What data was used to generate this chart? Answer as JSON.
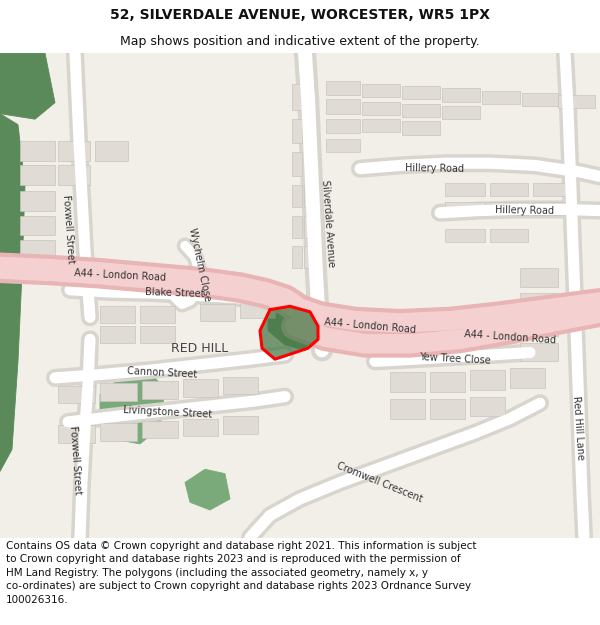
{
  "title_line1": "52, SILVERDALE AVENUE, WORCESTER, WR5 1PX",
  "title_line2": "Map shows position and indicative extent of the property.",
  "footer": "Contains OS data © Crown copyright and database right 2021. This information is subject\nto Crown copyright and database rights 2023 and is reproduced with the permission of\nHM Land Registry. The polygons (including the associated geometry, namely x, y\nco-ordinates) are subject to Crown copyright and database rights 2023 Ordnance Survey\n100026316.",
  "bg_color": "#ffffff",
  "map_bg": "#f2efe9",
  "road_pink_outer": "#e8b4b4",
  "road_pink_inner": "#f5d0d0",
  "road_gray_outer": "#d8d4ce",
  "road_gray_inner": "#ffffff",
  "building_fill": "#e0dbd5",
  "building_outline": "#c8c4be",
  "green_dark": "#5a8a5a",
  "green_light": "#7aaa7a",
  "plot_red": "#ff0000",
  "plot_green_fill": "#4a7a4a",
  "title_fontsize": 10,
  "subtitle_fontsize": 9,
  "footer_fontsize": 7.5,
  "road_label_size": 7,
  "area_label_size": 9
}
